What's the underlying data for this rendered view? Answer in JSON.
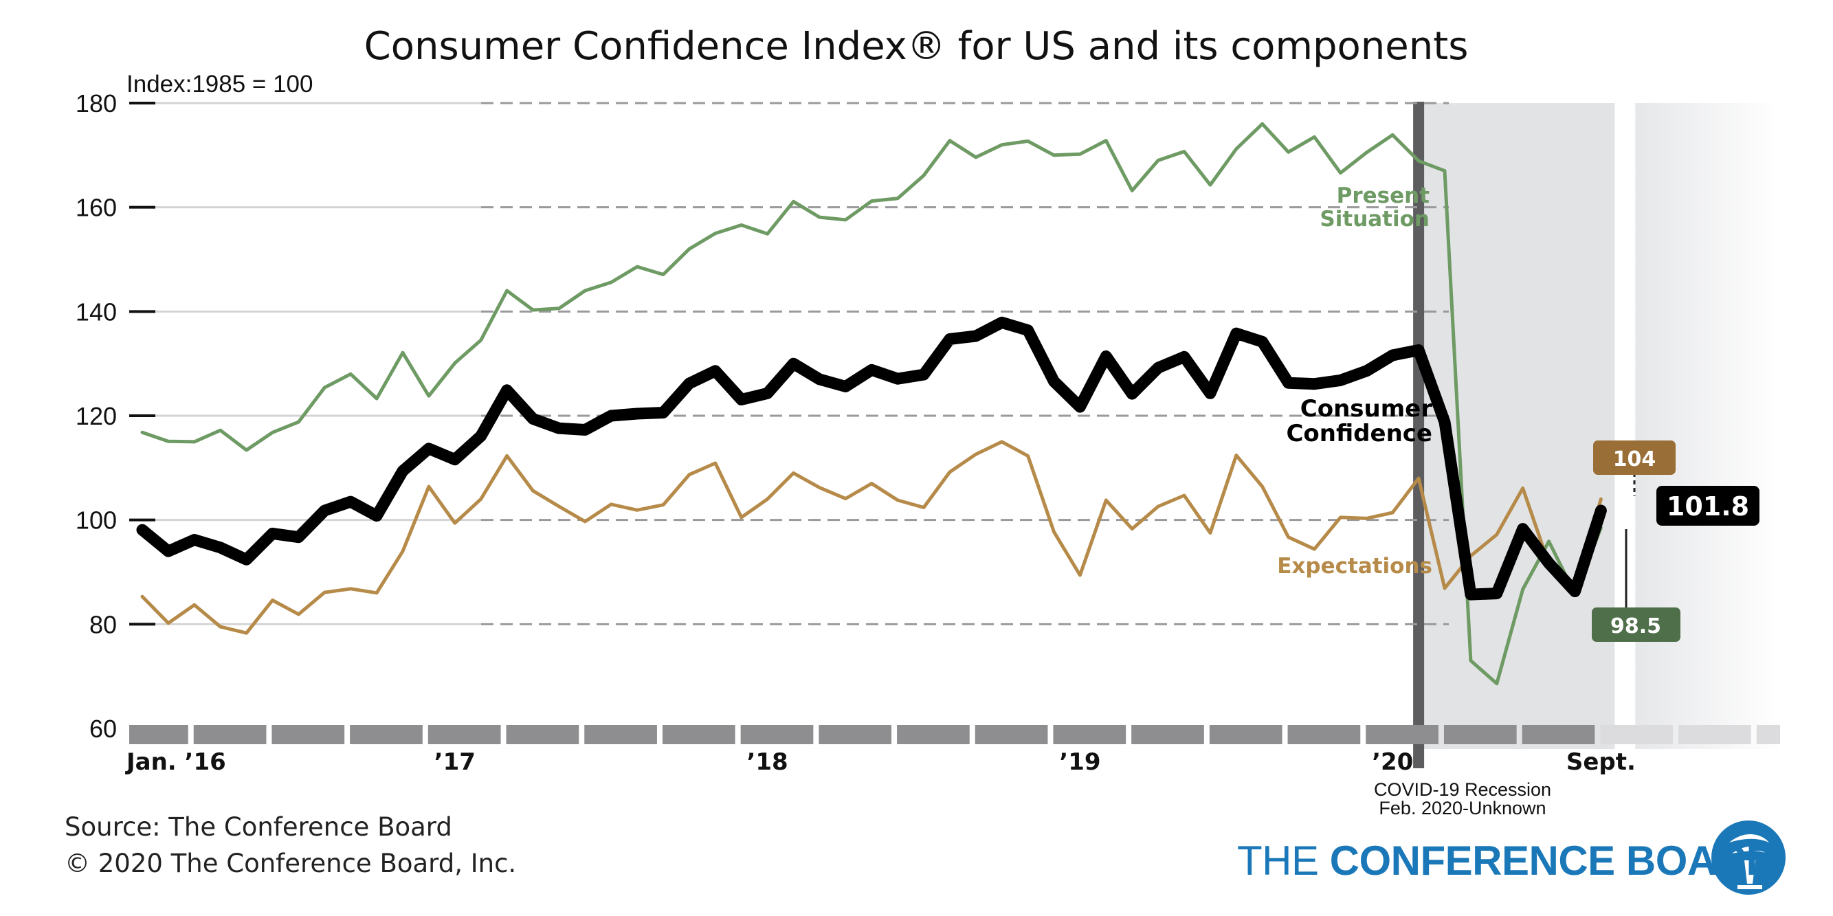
{
  "chart_data": {
    "type": "line",
    "title": "Consumer Confidence Index® for US and its components",
    "ylabel": "Index:1985 = 100",
    "ylim": [
      60,
      180
    ],
    "yticks": [
      60,
      80,
      100,
      120,
      140,
      160,
      180
    ],
    "grid": true,
    "x_start": "2016-01",
    "x_end": "2020-09",
    "xtick_labels": [
      {
        "month_index": 0,
        "label": "Jan. ’16"
      },
      {
        "month_index": 12,
        "label": "’17"
      },
      {
        "month_index": 24,
        "label": "’18"
      },
      {
        "month_index": 36,
        "label": "’19"
      },
      {
        "month_index": 48,
        "label": "’20"
      },
      {
        "month_index": 56,
        "label": "Sept."
      }
    ],
    "series": [
      {
        "name": "Present Situation",
        "color": "#6e9a63",
        "values": [
          116.8,
          115.1,
          115.0,
          117.2,
          113.4,
          116.8,
          118.8,
          125.4,
          128.0,
          123.3,
          132.1,
          123.8,
          130.1,
          134.5,
          144.0,
          140.3,
          140.6,
          144.0,
          145.6,
          148.6,
          147.1,
          152.0,
          155.0,
          156.6,
          154.9,
          161.1,
          158.1,
          157.6,
          161.2,
          161.7,
          166.1,
          172.8,
          169.6,
          172.0,
          172.7,
          170.0,
          170.2,
          172.8,
          163.2,
          169.0,
          170.7,
          164.3,
          171.2,
          176.0,
          170.6,
          173.5,
          166.6,
          170.5,
          173.9,
          168.9,
          167.0,
          73.0,
          68.6,
          86.7,
          95.9,
          85.8,
          98.5
        ]
      },
      {
        "name": "Consumer Confidence",
        "color": "#000000",
        "values": [
          98.1,
          94.0,
          96.2,
          94.7,
          92.4,
          97.4,
          96.7,
          101.8,
          103.5,
          100.8,
          109.4,
          113.7,
          111.6,
          116.1,
          124.9,
          119.4,
          117.6,
          117.3,
          120.0,
          120.4,
          120.6,
          126.2,
          128.6,
          123.1,
          124.3,
          130.0,
          127.0,
          125.6,
          128.8,
          127.1,
          127.9,
          134.7,
          135.3,
          137.9,
          136.4,
          126.6,
          121.7,
          131.4,
          124.2,
          129.2,
          131.3,
          124.3,
          135.8,
          134.2,
          126.3,
          126.1,
          126.8,
          128.6,
          131.6,
          132.6,
          118.8,
          85.7,
          85.9,
          98.3,
          91.7,
          86.3,
          101.8
        ]
      },
      {
        "name": "Expectations",
        "color": "#b68a48",
        "values": [
          85.3,
          80.2,
          83.7,
          79.5,
          78.3,
          84.6,
          81.9,
          86.1,
          86.8,
          86.0,
          94.0,
          106.4,
          99.4,
          104.0,
          112.3,
          105.6,
          102.6,
          99.7,
          103.0,
          101.9,
          102.9,
          108.7,
          110.9,
          100.5,
          104.0,
          109.0,
          106.2,
          104.1,
          107.0,
          103.8,
          102.4,
          109.2,
          112.6,
          115.0,
          112.3,
          97.7,
          89.4,
          103.8,
          98.3,
          102.6,
          104.7,
          97.5,
          112.4,
          106.4,
          96.7,
          94.4,
          100.5,
          100.3,
          101.4,
          108.0,
          86.9,
          93.1,
          97.2,
          106.1,
          91.5,
          87.1,
          104.0
        ]
      }
    ],
    "annotations": {
      "present_label_line1": "Present",
      "present_label_line2": "Situation",
      "consumer_label_line1": "Consumer",
      "consumer_label_line2": "Confidence",
      "expectations_label": "Expectations",
      "last_consumer": "101.8",
      "last_expectations": "104",
      "last_present": "98.5",
      "recession_line1": "COVID-19 Recession",
      "recession_line2": "Feb. 2020-Unknown"
    },
    "recession_start": "2020-02"
  },
  "footer": {
    "source": "Source: The Conference Board",
    "copyright": "© 2020 The Conference Board, Inc."
  },
  "logo": {
    "text_light": "THE ",
    "text_bold": "CONFERENCE BOARD"
  },
  "colors": {
    "present": "#6e9a63",
    "consumer": "#000000",
    "expectations": "#b68a48",
    "recession_band": "#e2e3e5",
    "axis_bar": "#8e8e90",
    "brand": "#1b78b8"
  }
}
